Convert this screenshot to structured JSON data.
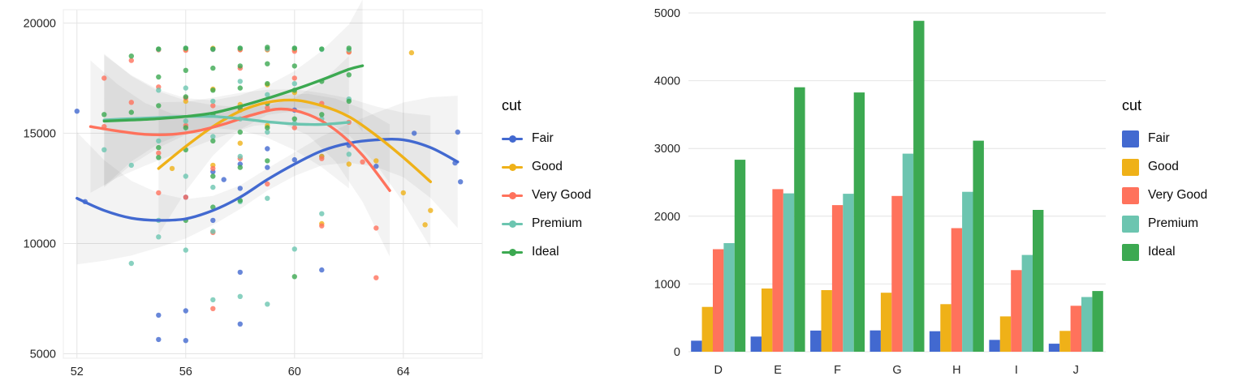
{
  "palette": {
    "fair": "#4269d0",
    "good": "#efb118",
    "very_good": "#ff725c",
    "premium": "#6cc5b0",
    "ideal": "#3ca951",
    "grid": "#e4e4e4",
    "panel_border": "#ececec",
    "tick_text": "#262626"
  },
  "chart_data": [
    {
      "type": "scatter",
      "title": "",
      "xlabel": "",
      "ylabel": "",
      "xlim": [
        51.5,
        66.9
      ],
      "ylim": [
        4800,
        20600
      ],
      "xticks": [
        52,
        56,
        60,
        64
      ],
      "yticks": [
        5000,
        10000,
        15000,
        20000
      ],
      "grid": true,
      "legend_title": "cut",
      "legend_position": "right",
      "legend_symbol": "point-line",
      "series": [
        {
          "name": "Fair",
          "color": "#4269d0",
          "points": [
            [
              52,
              16000
            ],
            [
              52.3,
              11900
            ],
            [
              55,
              6750
            ],
            [
              55,
              5650
            ],
            [
              56,
              5600
            ],
            [
              56,
              6950
            ],
            [
              56,
              12100
            ],
            [
              57,
              13250
            ],
            [
              57,
              11050
            ],
            [
              57.4,
              12900
            ],
            [
              58,
              12500
            ],
            [
              58,
              13600
            ],
            [
              58,
              8700
            ],
            [
              58,
              6350
            ],
            [
              59,
              13450
            ],
            [
              59,
              14300
            ],
            [
              60,
              13800
            ],
            [
              60,
              16050
            ],
            [
              61,
              8800
            ],
            [
              61,
              13950
            ],
            [
              62,
              14450
            ],
            [
              63,
              13500
            ],
            [
              64.4,
              15000
            ],
            [
              66,
              15050
            ],
            [
              65.9,
              13650
            ],
            [
              66.1,
              12800
            ]
          ],
          "smooth": [
            [
              52,
              12050
            ],
            [
              53,
              11500
            ],
            [
              54,
              11150
            ],
            [
              55,
              11050
            ],
            [
              56,
              11120
            ],
            [
              57,
              11500
            ],
            [
              58,
              12100
            ],
            [
              59,
              12900
            ],
            [
              60,
              13600
            ],
            [
              61,
              14200
            ],
            [
              62,
              14550
            ],
            [
              63,
              14700
            ],
            [
              64,
              14700
            ],
            [
              65,
              14350
            ],
            [
              66,
              13700
            ]
          ]
        },
        {
          "name": "Good",
          "color": "#efb118",
          "points": [
            [
              55,
              18800
            ],
            [
              55.5,
              13400
            ],
            [
              56,
              16450
            ],
            [
              56,
              18800
            ],
            [
              57,
              18850
            ],
            [
              57,
              17000
            ],
            [
              57,
              13550
            ],
            [
              58,
              18800
            ],
            [
              58,
              16300
            ],
            [
              58,
              14550
            ],
            [
              59,
              18780
            ],
            [
              59,
              17200
            ],
            [
              59,
              15350
            ],
            [
              60,
              18800
            ],
            [
              60,
              16850
            ],
            [
              61,
              13950
            ],
            [
              61,
              10900
            ],
            [
              62,
              18700
            ],
            [
              62,
              13600
            ],
            [
              63,
              13750
            ],
            [
              64,
              12300
            ],
            [
              64.3,
              18650
            ],
            [
              64.8,
              10850
            ],
            [
              65,
              11500
            ]
          ],
          "smooth": [
            [
              55,
              13400
            ],
            [
              56,
              14400
            ],
            [
              57,
              15300
            ],
            [
              58,
              16000
            ],
            [
              59,
              16400
            ],
            [
              60,
              16500
            ],
            [
              61,
              16250
            ],
            [
              62,
              15750
            ],
            [
              63,
              14900
            ],
            [
              64,
              13900
            ],
            [
              65,
              12800
            ]
          ]
        },
        {
          "name": "Very Good",
          "color": "#ff725c",
          "points": [
            [
              53,
              17500
            ],
            [
              53,
              15300
            ],
            [
              54,
              18300
            ],
            [
              54,
              16400
            ],
            [
              55,
              18780
            ],
            [
              55,
              17100
            ],
            [
              55,
              14100
            ],
            [
              55,
              12300
            ],
            [
              56,
              18760
            ],
            [
              56,
              16600
            ],
            [
              56,
              15350
            ],
            [
              56,
              12100
            ],
            [
              57,
              18800
            ],
            [
              57,
              16250
            ],
            [
              57,
              13400
            ],
            [
              57,
              10500
            ],
            [
              57,
              7050
            ],
            [
              58,
              18780
            ],
            [
              58,
              17950
            ],
            [
              58,
              16050
            ],
            [
              58,
              13850
            ],
            [
              59,
              18800
            ],
            [
              59,
              16150
            ],
            [
              59,
              12700
            ],
            [
              60,
              18720
            ],
            [
              60,
              17500
            ],
            [
              60,
              15250
            ],
            [
              61,
              16350
            ],
            [
              61,
              13850
            ],
            [
              61,
              10800
            ],
            [
              62,
              18680
            ],
            [
              62,
              15500
            ],
            [
              62.5,
              13700
            ],
            [
              63,
              10700
            ],
            [
              63,
              8450
            ]
          ],
          "smooth": [
            [
              52.5,
              15300
            ],
            [
              53.5,
              15100
            ],
            [
              54.5,
              14950
            ],
            [
              55.5,
              14950
            ],
            [
              56.5,
              15120
            ],
            [
              57.5,
              15450
            ],
            [
              58.5,
              15850
            ],
            [
              59.5,
              16100
            ],
            [
              60.5,
              15850
            ],
            [
              61.5,
              15150
            ],
            [
              62.5,
              14000
            ],
            [
              63.5,
              12400
            ]
          ]
        },
        {
          "name": "Premium",
          "color": "#6cc5b0",
          "points": [
            [
              53,
              14250
            ],
            [
              54,
              9100
            ],
            [
              54,
              13550
            ],
            [
              55,
              18800
            ],
            [
              55,
              16950
            ],
            [
              55,
              14650
            ],
            [
              55,
              11050
            ],
            [
              55,
              10300
            ],
            [
              56,
              18850
            ],
            [
              56,
              17050
            ],
            [
              56,
              15550
            ],
            [
              56,
              13050
            ],
            [
              56,
              9700
            ],
            [
              57,
              18800
            ],
            [
              57,
              16450
            ],
            [
              57,
              14850
            ],
            [
              57,
              12550
            ],
            [
              57,
              10550
            ],
            [
              57,
              7450
            ],
            [
              58,
              18850
            ],
            [
              58,
              17350
            ],
            [
              58,
              15650
            ],
            [
              58,
              13950
            ],
            [
              58,
              11900
            ],
            [
              58,
              7600
            ],
            [
              59,
              18820
            ],
            [
              59,
              16750
            ],
            [
              59,
              15050
            ],
            [
              59,
              12050
            ],
            [
              59,
              7250
            ],
            [
              60,
              18850
            ],
            [
              60,
              17250
            ],
            [
              60,
              15450
            ],
            [
              60,
              9750
            ],
            [
              61,
              18800
            ],
            [
              61,
              15650
            ],
            [
              61,
              11350
            ],
            [
              62,
              18780
            ],
            [
              62,
              16550
            ],
            [
              62,
              14050
            ]
          ],
          "smooth": [
            [
              53,
              15600
            ],
            [
              54,
              15660
            ],
            [
              55,
              15710
            ],
            [
              56,
              15760
            ],
            [
              57,
              15760
            ],
            [
              58,
              15660
            ],
            [
              59,
              15520
            ],
            [
              60,
              15420
            ],
            [
              61,
              15400
            ],
            [
              62,
              15500
            ]
          ]
        },
        {
          "name": "Ideal",
          "color": "#3ca951",
          "points": [
            [
              53,
              15850
            ],
            [
              54,
              18500
            ],
            [
              54,
              15950
            ],
            [
              55,
              18820
            ],
            [
              55,
              17550
            ],
            [
              55,
              16250
            ],
            [
              55,
              14350
            ],
            [
              55,
              13900
            ],
            [
              56,
              18860
            ],
            [
              56,
              17850
            ],
            [
              56,
              16650
            ],
            [
              56,
              15250
            ],
            [
              56,
              14250
            ],
            [
              56,
              11050
            ],
            [
              57,
              18820
            ],
            [
              57,
              17950
            ],
            [
              57,
              16950
            ],
            [
              57,
              15850
            ],
            [
              57,
              14650
            ],
            [
              57,
              13050
            ],
            [
              57,
              11650
            ],
            [
              58,
              18860
            ],
            [
              58,
              18050
            ],
            [
              58,
              17050
            ],
            [
              58,
              16150
            ],
            [
              58,
              15050
            ],
            [
              58,
              13450
            ],
            [
              58,
              11950
            ],
            [
              59,
              18900
            ],
            [
              59,
              18150
            ],
            [
              59,
              17250
            ],
            [
              59,
              16350
            ],
            [
              59,
              15250
            ],
            [
              59,
              13750
            ],
            [
              60,
              18860
            ],
            [
              60,
              18050
            ],
            [
              60,
              16950
            ],
            [
              60,
              15650
            ],
            [
              60,
              8500
            ],
            [
              61,
              18820
            ],
            [
              61,
              17350
            ],
            [
              61,
              15850
            ],
            [
              62,
              18860
            ],
            [
              62,
              17650
            ],
            [
              62,
              16450
            ]
          ],
          "smooth": [
            [
              53,
              15550
            ],
            [
              54,
              15600
            ],
            [
              55,
              15660
            ],
            [
              56,
              15760
            ],
            [
              57,
              15920
            ],
            [
              58,
              16220
            ],
            [
              59,
              16580
            ],
            [
              60,
              16980
            ],
            [
              61,
              17420
            ],
            [
              62,
              17900
            ],
            [
              62.5,
              18060
            ]
          ]
        }
      ]
    },
    {
      "type": "bar",
      "title": "",
      "xlabel": "",
      "ylabel": "",
      "categories": [
        "D",
        "E",
        "F",
        "G",
        "H",
        "I",
        "J"
      ],
      "ylim": [
        0,
        5000
      ],
      "yticks": [
        0,
        1000,
        2000,
        3000,
        4000,
        5000
      ],
      "grid": true,
      "legend_title": "cut",
      "legend_position": "right",
      "legend_symbol": "square",
      "series": [
        {
          "name": "Fair",
          "color": "#4269d0",
          "values": [
            163,
            224,
            312,
            314,
            303,
            175,
            119
          ]
        },
        {
          "name": "Good",
          "color": "#efb118",
          "values": [
            662,
            933,
            909,
            871,
            702,
            522,
            307
          ]
        },
        {
          "name": "Very Good",
          "color": "#ff725c",
          "values": [
            1513,
            2400,
            2164,
            2299,
            1824,
            1204,
            678
          ]
        },
        {
          "name": "Premium",
          "color": "#6cc5b0",
          "values": [
            1603,
            2337,
            2331,
            2924,
            2360,
            1428,
            808
          ]
        },
        {
          "name": "Ideal",
          "color": "#3ca951",
          "values": [
            2834,
            3903,
            3826,
            4884,
            3115,
            2093,
            896
          ]
        }
      ]
    }
  ]
}
